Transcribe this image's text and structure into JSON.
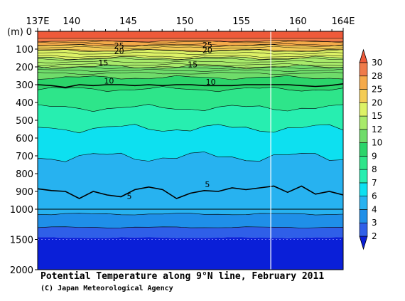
{
  "chart_data": {
    "type": "contour",
    "title": "Potential Temperature along 9°N line, February 2011",
    "credit": "(C) Japan Meteorological Agency",
    "xlim": [
      137,
      164
    ],
    "x_ticks": [
      137,
      140,
      145,
      150,
      155,
      160,
      164
    ],
    "x_tick_labels": [
      "137E",
      "140",
      "145",
      "150",
      "155",
      "160",
      "164E"
    ],
    "y_unit": "(m)",
    "y_ticks_upper": [
      0,
      100,
      200,
      300,
      400,
      500,
      600,
      700,
      800,
      900,
      1000
    ],
    "y_tick_labels_upper": [
      "0",
      "100",
      "200",
      "300",
      "400",
      "500",
      "600",
      "700",
      "800",
      "900",
      "1000"
    ],
    "y_ticks_lower": [
      1500,
      2000
    ],
    "y_tick_labels_lower": [
      "1500",
      "2000"
    ],
    "colorbar": {
      "levels": [
        2,
        3,
        4,
        6,
        7,
        8,
        9,
        10,
        12,
        15,
        20,
        25,
        28,
        30
      ],
      "labels": [
        "2",
        "3",
        "4",
        "6",
        "7",
        "8",
        "9",
        "10",
        "12",
        "15",
        "20",
        "25",
        "28",
        "30"
      ],
      "colors": [
        "#0a1fd8",
        "#2f5fe8",
        "#1f8fe8",
        "#27b2f0",
        "#0de0f0",
        "#27eeb0",
        "#2ee58a",
        "#2bd46a",
        "#6fdc6a",
        "#a8ea6a",
        "#ddf266",
        "#f4cc55",
        "#f5aa4a",
        "#ef7b4a",
        "#ee5a3a"
      ]
    },
    "isotherm_labels": [
      {
        "value": "25",
        "x": 144.2,
        "depth": 80
      },
      {
        "value": "20",
        "x": 144.2,
        "depth": 110
      },
      {
        "value": "15",
        "x": 142.8,
        "depth": 175
      },
      {
        "value": "10",
        "x": 143.3,
        "depth": 278
      },
      {
        "value": "25",
        "x": 152.0,
        "depth": 75
      },
      {
        "value": "20",
        "x": 152.0,
        "depth": 105
      },
      {
        "value": "15",
        "x": 150.7,
        "depth": 185
      },
      {
        "value": "10",
        "x": 152.3,
        "depth": 283
      },
      {
        "value": "5",
        "x": 152.0,
        "depth": 860
      },
      {
        "value": "5",
        "x": 145.1,
        "depth": 925
      }
    ],
    "vertical_line_x": 157.6,
    "isotherm_10_depths": [
      300,
      305,
      315,
      300,
      305,
      300,
      300,
      305,
      300,
      305,
      300,
      300,
      305,
      305,
      305,
      300,
      300,
      300,
      300,
      305,
      310,
      305,
      295
    ],
    "isotherm_5_depths": [
      885,
      895,
      900,
      940,
      900,
      920,
      930,
      890,
      875,
      890,
      940,
      910,
      895,
      900,
      880,
      890,
      880,
      870,
      905,
      870,
      915,
      900,
      920
    ]
  }
}
